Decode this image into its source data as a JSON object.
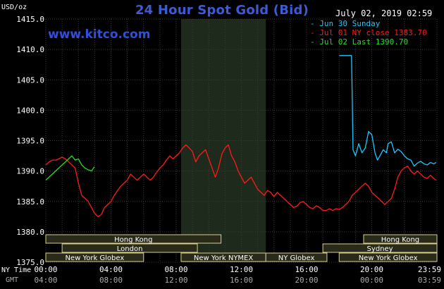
{
  "header": {
    "title": "24 Hour Spot Gold (Bid)",
    "watermark": "www.kitco.com",
    "unit": "USD/oz",
    "timestamp": "July 02, 2019 02:59"
  },
  "legend": [
    {
      "label": "- Jun 30 Sunday",
      "color": "#19c8ff"
    },
    {
      "label": "- Jul 01 NY close 1383.70",
      "color": "#ff1a1a"
    },
    {
      "label": "- Jul 02 Last 1390.70",
      "color": "#22e022"
    }
  ],
  "axis_labels": {
    "ny_time": "NY Time",
    "gmt": "GMT"
  },
  "sessions": [
    {
      "label": "Hong Kong",
      "start": 0.0,
      "end": 10.75,
      "row": 0
    },
    {
      "label": "Hong Kong",
      "start": 19.5,
      "end": 24.0,
      "row": 0
    },
    {
      "label": "London",
      "start": 1.0,
      "end": 9.3,
      "row": 1
    },
    {
      "label": "Sydney",
      "start": 17.0,
      "end": 24.0,
      "row": 1
    },
    {
      "label": "New York Globex",
      "start": 0.0,
      "end": 6.0,
      "row": 2
    },
    {
      "label": "New York NYMEX",
      "start": 8.3,
      "end": 13.5,
      "row": 2
    },
    {
      "label": "NY Globex",
      "start": 13.5,
      "end": 17.25,
      "row": 2
    },
    {
      "label": "New York Globex",
      "start": 18.0,
      "end": 24.0,
      "row": 2
    }
  ],
  "colors": {
    "background": "#000000",
    "grid": "#3a3a3a",
    "shade": "#1e2a1c",
    "sunday": "#19c8ff",
    "ny_close": "#ff1a1a",
    "last": "#22e022",
    "session_box": "#2a2a1a",
    "session_border": "#d8cf8a",
    "text": "#ffffff",
    "gmt_text": "#aaaaaa"
  },
  "chart_data": {
    "type": "line",
    "title": "24 Hour Spot Gold (Bid)",
    "ylabel": "USD/oz",
    "ylim": [
      1375,
      1415
    ],
    "xlim": [
      0,
      24
    ],
    "y_ticks": [
      1375,
      1380,
      1385,
      1390,
      1395,
      1400,
      1405,
      1410,
      1415
    ],
    "x_ticks": [
      {
        "x": 0,
        "ny": "00:00",
        "gmt": "04:00"
      },
      {
        "x": 4,
        "ny": "04:00",
        "gmt": "08:00"
      },
      {
        "x": 8,
        "ny": "08:00",
        "gmt": "12:00"
      },
      {
        "x": 12,
        "ny": "12:00",
        "gmt": "16:00"
      },
      {
        "x": 16,
        "ny": "16:00",
        "gmt": "20:00"
      },
      {
        "x": 20,
        "ny": "20:00",
        "gmt": "00:00"
      },
      {
        "x": 23.98,
        "ny": "23:59",
        "gmt": "03:59"
      }
    ],
    "grid": true,
    "shaded_range": [
      8.3,
      13.5
    ],
    "series": [
      {
        "name": "Jun 30 Sunday",
        "color": "#19c8ff",
        "x": [
          18.0,
          18.75,
          18.76,
          18.8,
          18.85,
          19.0,
          19.2,
          19.4,
          19.6,
          19.8,
          20.0,
          20.2,
          20.35,
          20.5,
          20.7,
          20.9,
          21.0,
          21.2,
          21.4,
          21.6,
          21.8,
          22.0,
          22.2,
          22.4,
          22.6,
          22.8,
          23.0,
          23.2,
          23.4,
          23.6,
          23.8,
          23.95
        ],
        "y": [
          1409.0,
          1409.0,
          1408.7,
          1402.0,
          1393.5,
          1392.5,
          1394.5,
          1393.0,
          1393.8,
          1396.5,
          1396.0,
          1393.0,
          1391.8,
          1392.5,
          1393.5,
          1393.0,
          1394.5,
          1394.8,
          1393.0,
          1393.6,
          1393.2,
          1392.5,
          1392.0,
          1391.8,
          1390.8,
          1391.3,
          1391.6,
          1391.2,
          1391.0,
          1391.4,
          1391.2,
          1391.4
        ]
      },
      {
        "name": "Jul 01 NY close",
        "color": "#ff1a1a",
        "x": [
          0.0,
          0.2,
          0.4,
          0.6,
          0.8,
          1.0,
          1.2,
          1.4,
          1.6,
          1.8,
          2.0,
          2.2,
          2.4,
          2.6,
          2.8,
          3.0,
          3.2,
          3.4,
          3.6,
          3.8,
          4.0,
          4.2,
          4.4,
          4.6,
          4.8,
          5.0,
          5.2,
          5.4,
          5.6,
          5.8,
          6.0,
          6.2,
          6.4,
          6.6,
          6.8,
          7.0,
          7.2,
          7.4,
          7.6,
          7.8,
          8.0,
          8.2,
          8.4,
          8.6,
          8.8,
          9.0,
          9.2,
          9.4,
          9.6,
          9.8,
          10.0,
          10.2,
          10.4,
          10.6,
          10.8,
          11.0,
          11.2,
          11.4,
          11.6,
          11.8,
          12.0,
          12.2,
          12.4,
          12.6,
          12.8,
          13.0,
          13.2,
          13.4,
          13.6,
          13.8,
          14.0,
          14.2,
          14.4,
          14.6,
          14.8,
          15.0,
          15.2,
          15.4,
          15.6,
          15.8,
          16.0,
          16.2,
          16.4,
          16.6,
          16.8,
          17.0,
          17.2,
          17.4,
          17.6,
          17.8,
          18.0,
          18.2,
          18.4,
          18.6,
          18.8,
          19.0,
          19.2,
          19.4,
          19.6,
          19.8,
          20.0,
          20.2,
          20.4,
          20.6,
          20.8,
          21.0,
          21.2,
          21.4,
          21.6,
          21.8,
          22.0,
          22.2,
          22.4,
          22.6,
          22.8,
          23.0,
          23.2,
          23.4,
          23.6,
          23.8,
          23.95
        ],
        "y": [
          1391.0,
          1391.5,
          1391.8,
          1391.8,
          1392.0,
          1392.3,
          1392.0,
          1391.5,
          1391.0,
          1390.5,
          1388.0,
          1386.0,
          1385.5,
          1385.0,
          1384.0,
          1383.0,
          1382.5,
          1382.8,
          1384.0,
          1384.5,
          1385.0,
          1386.0,
          1386.8,
          1387.5,
          1388.0,
          1388.5,
          1389.5,
          1389.0,
          1388.5,
          1389.0,
          1389.5,
          1389.0,
          1388.5,
          1389.0,
          1389.8,
          1390.5,
          1391.0,
          1391.8,
          1392.5,
          1392.0,
          1392.5,
          1393.0,
          1393.8,
          1394.3,
          1393.8,
          1393.2,
          1391.5,
          1392.5,
          1393.0,
          1393.5,
          1392.0,
          1390.5,
          1389.0,
          1390.5,
          1392.8,
          1393.8,
          1394.3,
          1392.5,
          1391.5,
          1390.0,
          1389.0,
          1388.0,
          1388.5,
          1389.0,
          1388.0,
          1387.0,
          1386.5,
          1386.0,
          1386.8,
          1386.5,
          1385.8,
          1386.5,
          1386.0,
          1385.5,
          1385.0,
          1384.5,
          1384.0,
          1384.2,
          1384.8,
          1385.0,
          1384.5,
          1384.0,
          1383.8,
          1384.3,
          1384.0,
          1383.5,
          1383.5,
          1383.8,
          1383.5,
          1383.8,
          1383.7,
          1384.0,
          1384.5,
          1385.0,
          1386.0,
          1386.5,
          1387.0,
          1387.5,
          1388.0,
          1387.5,
          1386.5,
          1386.0,
          1385.5,
          1385.0,
          1384.5,
          1385.0,
          1385.5,
          1387.0,
          1389.0,
          1390.0,
          1390.5,
          1390.8,
          1390.0,
          1389.5,
          1390.0,
          1389.5,
          1389.0,
          1388.8,
          1389.3,
          1388.8,
          1388.5
        ]
      },
      {
        "name": "Jul 02 Last",
        "color": "#22e022",
        "x": [
          0.0,
          0.2,
          0.4,
          0.6,
          0.8,
          1.0,
          1.2,
          1.4,
          1.6,
          1.8,
          2.0,
          2.2,
          2.4,
          2.6,
          2.8,
          2.98
        ],
        "y": [
          1388.5,
          1389.0,
          1389.5,
          1390.0,
          1390.5,
          1391.0,
          1391.5,
          1392.0,
          1392.5,
          1391.8,
          1392.0,
          1391.0,
          1390.5,
          1390.2,
          1390.0,
          1390.7
        ]
      }
    ]
  }
}
